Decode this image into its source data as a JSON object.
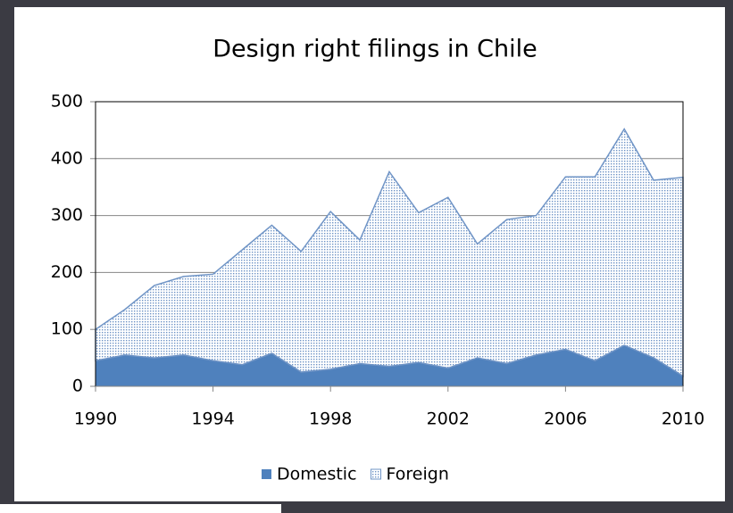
{
  "chart_data": {
    "type": "stacked_area",
    "title": "Design right filings in Chile",
    "x": [
      1990,
      1991,
      1992,
      1993,
      1994,
      1995,
      1996,
      1997,
      1998,
      1999,
      2000,
      2001,
      2002,
      2003,
      2004,
      2005,
      2006,
      2007,
      2008,
      2009,
      2010
    ],
    "series": [
      {
        "name": "Domestic",
        "color": "#4f81bd",
        "values": [
          45,
          55,
          50,
          55,
          45,
          38,
          58,
          25,
          30,
          40,
          35,
          42,
          32,
          50,
          40,
          55,
          65,
          45,
          72,
          50,
          18
        ]
      },
      {
        "name": "Foreign",
        "color": "#6f94c6",
        "values": [
          55,
          80,
          127,
          138,
          152,
          202,
          225,
          212,
          277,
          217,
          342,
          263,
          300,
          200,
          253,
          245,
          303,
          323,
          380,
          312,
          349
        ]
      }
    ],
    "xlim": [
      1990,
      2010
    ],
    "xticks": [
      1990,
      1994,
      1998,
      2002,
      2006,
      2010
    ],
    "ylim": [
      0,
      500
    ],
    "yticks": [
      0,
      100,
      200,
      300,
      400,
      500
    ],
    "grid": true,
    "legend": "bottom"
  }
}
